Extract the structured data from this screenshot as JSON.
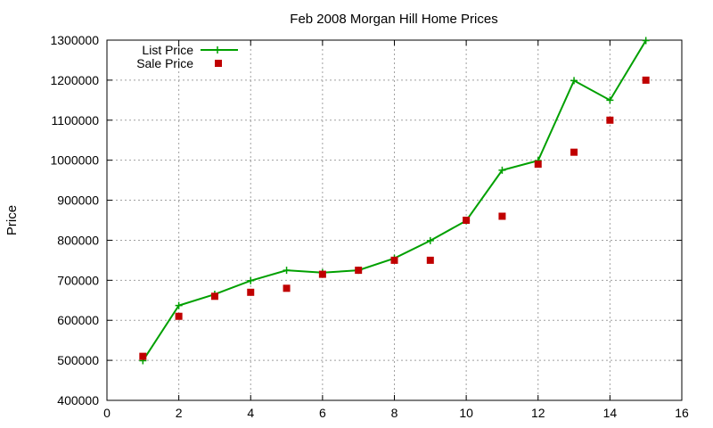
{
  "chart_data": {
    "type": "line",
    "title": "Feb 2008 Morgan Hill Home Prices",
    "xlabel": "",
    "ylabel": "Price",
    "xlim": [
      0,
      16
    ],
    "ylim": [
      400000,
      1300000
    ],
    "xticks": [
      0,
      2,
      4,
      6,
      8,
      10,
      12,
      14,
      16
    ],
    "yticks": [
      400000,
      500000,
      600000,
      700000,
      800000,
      900000,
      1000000,
      1100000,
      1200000,
      1300000
    ],
    "grid": true,
    "legend": "top-left",
    "series": [
      {
        "name": "List Price",
        "style": "linespoints",
        "marker": "plus",
        "color": "#00a000",
        "x": [
          1,
          2,
          3,
          4,
          5,
          6,
          7,
          8,
          9,
          10,
          11,
          12,
          13,
          14,
          15
        ],
        "y": [
          499000,
          637000,
          665000,
          699000,
          725000,
          719000,
          725000,
          755000,
          799000,
          849000,
          975000,
          999000,
          1199000,
          1150000,
          1299000
        ]
      },
      {
        "name": "Sale Price",
        "style": "points",
        "marker": "square",
        "color": "#c00000",
        "x": [
          1,
          2,
          3,
          4,
          5,
          6,
          7,
          8,
          9,
          10,
          11,
          12,
          13,
          14,
          15
        ],
        "y": [
          510000,
          610000,
          660000,
          670000,
          680000,
          715000,
          725000,
          750000,
          750000,
          850000,
          860000,
          990000,
          1020000,
          1100000,
          1200000
        ]
      }
    ]
  }
}
